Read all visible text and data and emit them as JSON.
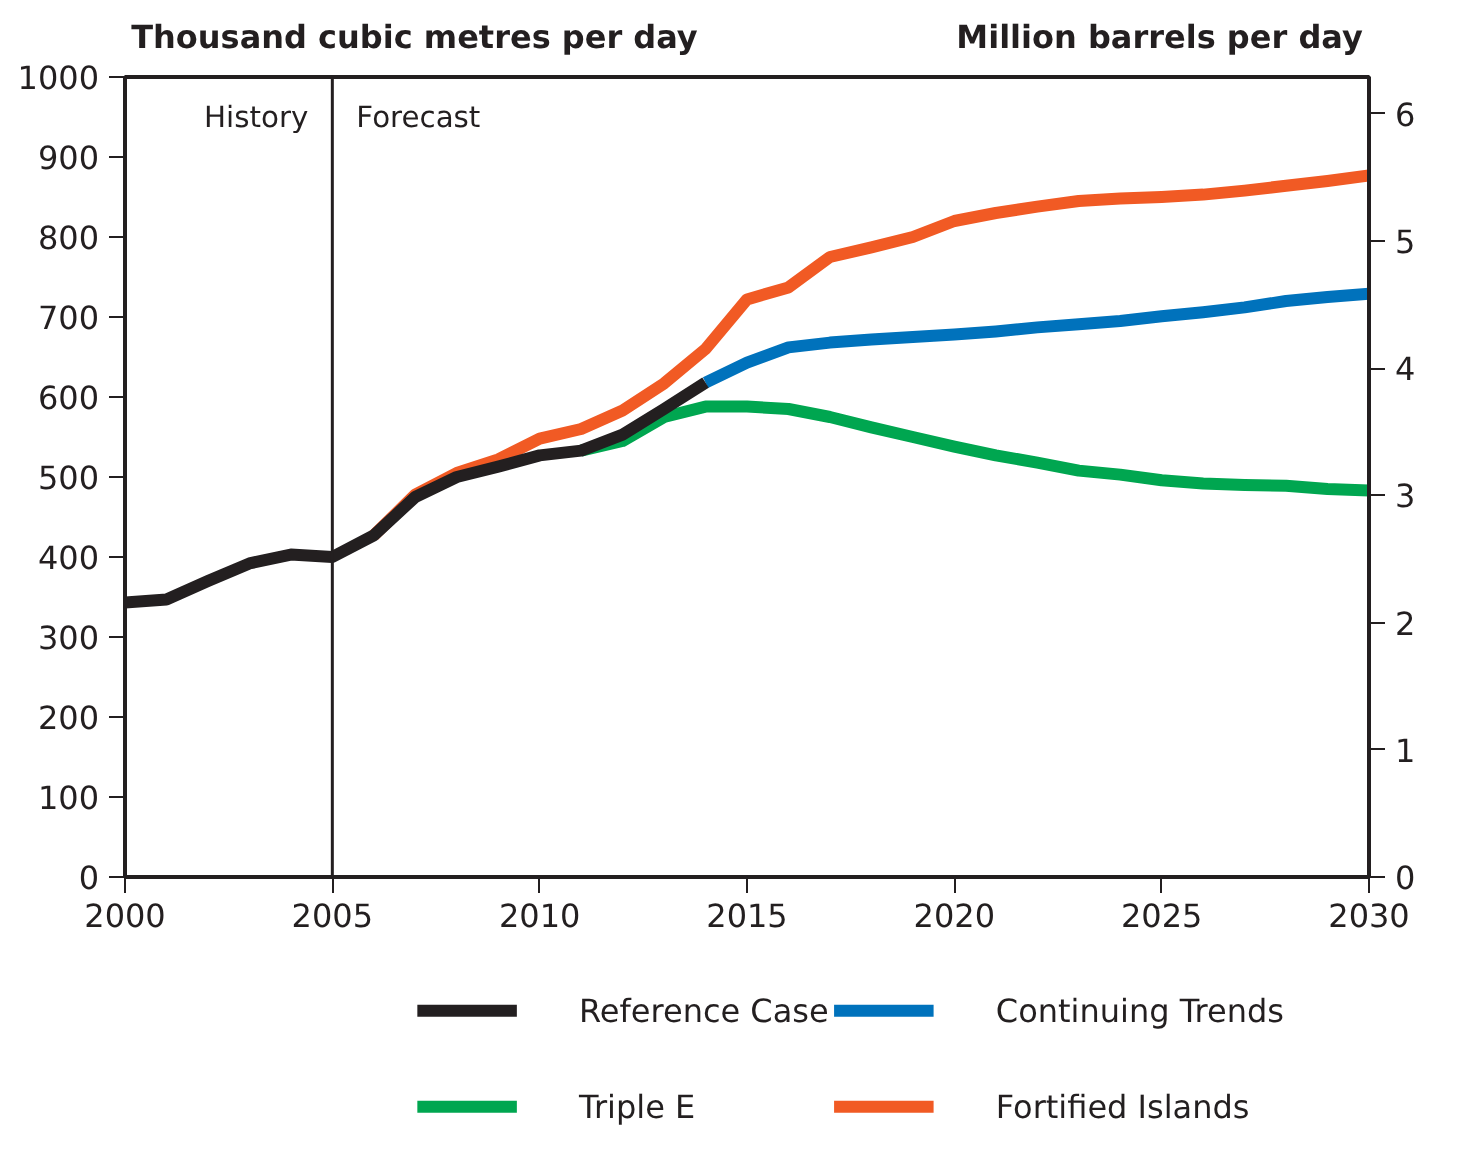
{
  "chart_data": {
    "type": "line",
    "ylabel": "Thousand cubic metres per day",
    "y2label": "Million barrels per day",
    "xlim": [
      2000,
      2030
    ],
    "xticks": [
      2000,
      2005,
      2010,
      2015,
      2020,
      2025,
      2030
    ],
    "ylim": [
      0,
      1000
    ],
    "yticks": [
      0,
      100,
      200,
      300,
      400,
      500,
      600,
      700,
      800,
      900,
      1000
    ],
    "y2lim": [
      0,
      6.29
    ],
    "y2ticks": [
      0,
      1,
      2,
      3,
      4,
      5,
      6
    ],
    "grid": false,
    "legend": "bottom",
    "line_style": "solid",
    "ref_lines": [
      {
        "axis": "x",
        "value": 2005,
        "color": "#231f20"
      }
    ],
    "annotations": [
      "History",
      "Forecast"
    ],
    "series": [
      {
        "name": "Triple E",
        "color": "#00a650",
        "x": [
          2011,
          2012,
          2013,
          2014,
          2015,
          2016,
          2017,
          2018,
          2019,
          2020,
          2021,
          2022,
          2023,
          2024,
          2025,
          2026,
          2027,
          2028,
          2029,
          2030
        ],
        "values": [
          533,
          545,
          575,
          588,
          588,
          585,
          575,
          562,
          550,
          538,
          527,
          518,
          508,
          503,
          496,
          492,
          490,
          489,
          485,
          483
        ]
      },
      {
        "name": "Fortified Islands",
        "color": "#f15a24",
        "x": [
          2006,
          2007,
          2008,
          2009,
          2010,
          2011,
          2012,
          2013,
          2014,
          2015,
          2016,
          2017,
          2018,
          2019,
          2020,
          2021,
          2022,
          2023,
          2024,
          2025,
          2026,
          2027,
          2028,
          2029,
          2030
        ],
        "values": [
          427,
          478,
          505,
          522,
          548,
          560,
          583,
          617,
          660,
          722,
          737,
          775,
          787,
          800,
          820,
          830,
          838,
          845,
          848,
          850,
          853,
          858,
          864,
          870,
          877
        ]
      },
      {
        "name": "Continuing Trends",
        "color": "#0072bc",
        "x": [
          2014,
          2015,
          2016,
          2017,
          2018,
          2019,
          2020,
          2021,
          2022,
          2023,
          2024,
          2025,
          2026,
          2027,
          2028,
          2029,
          2030
        ],
        "values": [
          618,
          643,
          662,
          668,
          672,
          675,
          678,
          682,
          687,
          691,
          695,
          701,
          706,
          712,
          720,
          725,
          729
        ]
      },
      {
        "name": "Reference Case",
        "color": "#231f20",
        "x": [
          2000,
          2001,
          2002,
          2003,
          2004,
          2005,
          2006,
          2007,
          2008,
          2009,
          2010,
          2011,
          2012,
          2013,
          2014
        ],
        "values": [
          343,
          347,
          370,
          392,
          403,
          400,
          427,
          475,
          500,
          513,
          527,
          533,
          553,
          585,
          618
        ]
      }
    ]
  }
}
